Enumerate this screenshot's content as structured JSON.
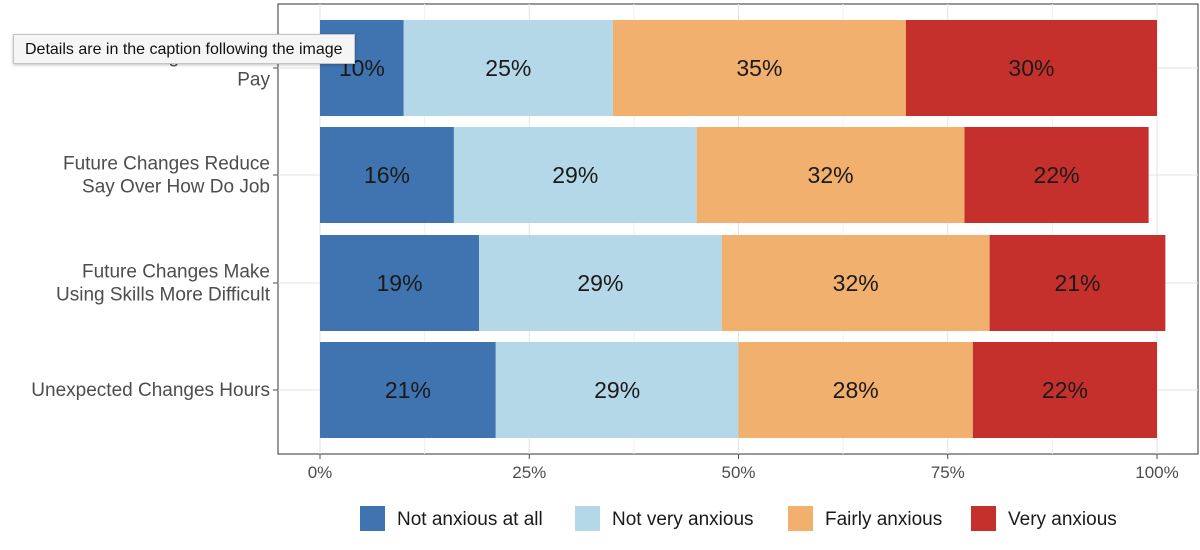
{
  "tooltip": {
    "text": "Details are in the caption following the image"
  },
  "chart_data": {
    "type": "bar",
    "orientation": "horizontal",
    "stacked": true,
    "categories": [
      [
        "Future Changes Reduce",
        "Pay"
      ],
      [
        "Future Changes Reduce",
        "Say Over How Do Job"
      ],
      [
        "Future Changes Make",
        "Using Skills More Difficult"
      ],
      [
        "Unexpected Changes Hours"
      ]
    ],
    "series": [
      {
        "name": "Not anxious at all",
        "color": "#3f74b0",
        "values": [
          10,
          16,
          19,
          21
        ]
      },
      {
        "name": "Not very anxious",
        "color": "#b5d8e8",
        "values": [
          25,
          29,
          29,
          29
        ]
      },
      {
        "name": "Fairly anxious",
        "color": "#f2b06e",
        "values": [
          35,
          32,
          32,
          28
        ]
      },
      {
        "name": "Very anxious",
        "color": "#c6302c",
        "values": [
          30,
          22,
          21,
          22
        ]
      }
    ],
    "labels": [
      [
        "10%",
        "25%",
        "35%",
        "30%"
      ],
      [
        "16%",
        "29%",
        "32%",
        "22%"
      ],
      [
        "19%",
        "29%",
        "32%",
        "21%"
      ],
      [
        "21%",
        "29%",
        "28%",
        "22%"
      ]
    ],
    "x_ticks": [
      "0%",
      "25%",
      "50%",
      "75%",
      "100%"
    ],
    "xlim": [
      0,
      100
    ],
    "grid": true,
    "legend_position": "bottom"
  }
}
